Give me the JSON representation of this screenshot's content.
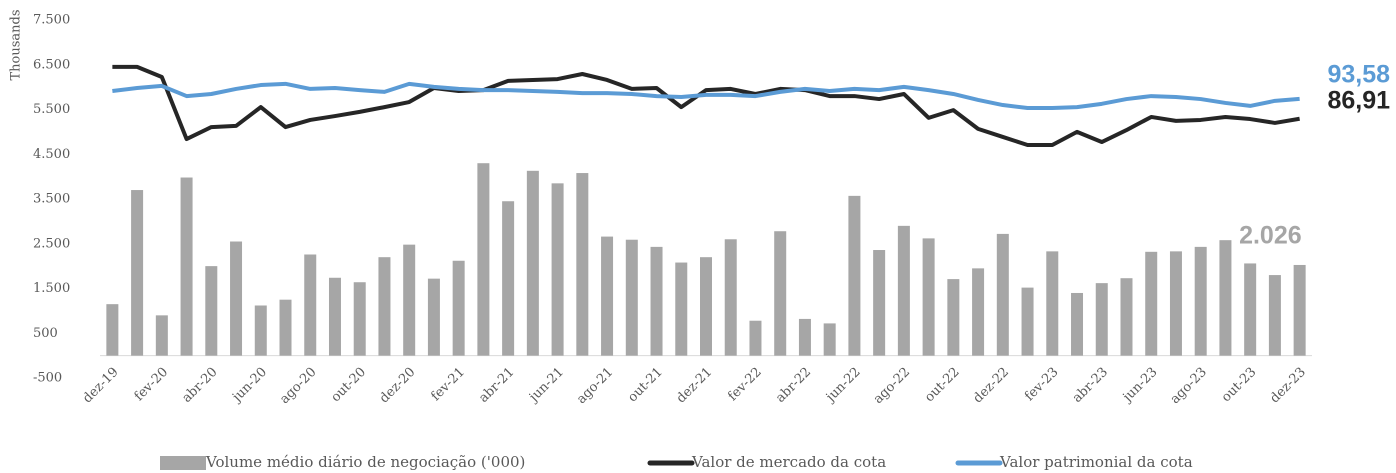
{
  "chart_data": {
    "type": "bar",
    "y_label": "Thousands",
    "categories": [
      "dez-19",
      null,
      "fev-20",
      null,
      "abr-20",
      null,
      "jun-20",
      null,
      "ago-20",
      null,
      "out-20",
      null,
      "dez-20",
      null,
      "fev-21",
      null,
      "abr-21",
      null,
      "jun-21",
      null,
      "ago-21",
      null,
      "out-21",
      null,
      "dez-21",
      null,
      "fev-22",
      null,
      "abr-22",
      null,
      "jun-22",
      null,
      "ago-22",
      null,
      "out-22",
      null,
      "dez-22",
      null,
      "fev-23",
      null,
      "abr-23",
      null,
      "jun-23",
      null,
      "ago-23",
      null,
      "out-23",
      null,
      "dez-23"
    ],
    "series": [
      {
        "name": "Volume médio diário de negociação ('000)",
        "type": "bar",
        "color": "#a6a6a6",
        "values": [
          1150,
          3700,
          900,
          3980,
          2000,
          2550,
          1120,
          1250,
          2260,
          1740,
          1640,
          2200,
          2480,
          1720,
          2120,
          4300,
          3450,
          4130,
          3850,
          4080,
          2660,
          2590,
          2430,
          2080,
          2200,
          2600,
          780,
          2780,
          820,
          720,
          3570,
          2360,
          2900,
          2620,
          1710,
          1950,
          2720,
          1520,
          2330,
          1400,
          1620,
          1730,
          2320,
          2330,
          2430,
          2580,
          2060,
          1800,
          2026
        ],
        "value_labels": [
          null,
          null,
          null,
          null,
          null,
          null,
          null,
          null,
          null,
          null,
          null,
          null,
          null,
          null,
          null,
          null,
          null,
          null,
          null,
          null,
          null,
          null,
          null,
          null,
          null,
          null,
          null,
          null,
          null,
          null,
          null,
          null,
          null,
          null,
          null,
          null,
          null,
          null,
          null,
          null,
          null,
          null,
          null,
          null,
          null,
          null,
          null,
          null,
          "2.026"
        ]
      },
      {
        "name": "Valor de mercado da cota",
        "type": "line",
        "axis": "y2",
        "color": "#262626",
        "values": [
          104.3,
          104.3,
          100.9,
          80.1,
          84.1,
          84.5,
          90.8,
          84.1,
          86.5,
          87.8,
          89.2,
          90.8,
          92.5,
          97.2,
          96.2,
          96.5,
          99.6,
          99.9,
          100.2,
          101.9,
          99.9,
          96.9,
          97.2,
          90.8,
          96.5,
          96.9,
          95.2,
          96.9,
          96.5,
          94.5,
          94.5,
          93.5,
          95.2,
          87.2,
          89.8,
          83.5,
          80.8,
          78.1,
          78.1,
          82.5,
          79.1,
          83.1,
          87.5,
          86.2,
          86.5,
          87.5,
          86.8,
          85.5,
          86.91
        ],
        "value_labels": [
          null,
          null,
          null,
          null,
          null,
          null,
          null,
          null,
          null,
          null,
          null,
          null,
          null,
          null,
          null,
          null,
          null,
          null,
          null,
          null,
          null,
          null,
          null,
          null,
          null,
          null,
          null,
          null,
          null,
          null,
          null,
          null,
          null,
          null,
          null,
          null,
          null,
          null,
          null,
          null,
          null,
          null,
          null,
          null,
          null,
          null,
          null,
          null,
          "86,91"
        ]
      },
      {
        "name": "Valor patrimonial da cota",
        "type": "line",
        "axis": "y2",
        "color": "#5b9bd5",
        "values": [
          96.2,
          97.2,
          97.9,
          94.5,
          95.2,
          96.9,
          98.2,
          98.6,
          96.9,
          97.2,
          96.5,
          95.9,
          98.6,
          97.6,
          96.9,
          96.5,
          96.5,
          96.2,
          95.9,
          95.5,
          95.5,
          95.2,
          94.5,
          94.2,
          94.9,
          94.9,
          94.5,
          95.9,
          96.9,
          96.2,
          96.9,
          96.5,
          97.6,
          96.5,
          95.2,
          93.2,
          91.5,
          90.5,
          90.5,
          90.8,
          91.9,
          93.5,
          94.5,
          94.2,
          93.5,
          92.2,
          91.2,
          92.9,
          93.58
        ],
        "value_labels": [
          null,
          null,
          null,
          null,
          null,
          null,
          null,
          null,
          null,
          null,
          null,
          null,
          null,
          null,
          null,
          null,
          null,
          null,
          null,
          null,
          null,
          null,
          null,
          null,
          null,
          null,
          null,
          null,
          null,
          null,
          null,
          null,
          null,
          null,
          null,
          null,
          null,
          null,
          null,
          null,
          null,
          null,
          null,
          null,
          null,
          null,
          null,
          null,
          "93,58"
        ]
      }
    ],
    "ylim": [
      -500,
      7500
    ],
    "yticks": [
      -500,
      500,
      {
        "value": 1500,
        "label": "1.500"
      },
      {
        "value": 2500,
        "label": "2.500"
      },
      {
        "value": 3500,
        "label": "3.500"
      },
      {
        "value": 4500,
        "label": "4.500"
      },
      {
        "value": 5500,
        "label": "5.500"
      },
      {
        "value": 6500,
        "label": "6.500"
      },
      {
        "value": 7500,
        "label": "7.500"
      }
    ],
    "y2lim": [
      0,
      120
    ],
    "grid": false,
    "legend": "bottom"
  }
}
